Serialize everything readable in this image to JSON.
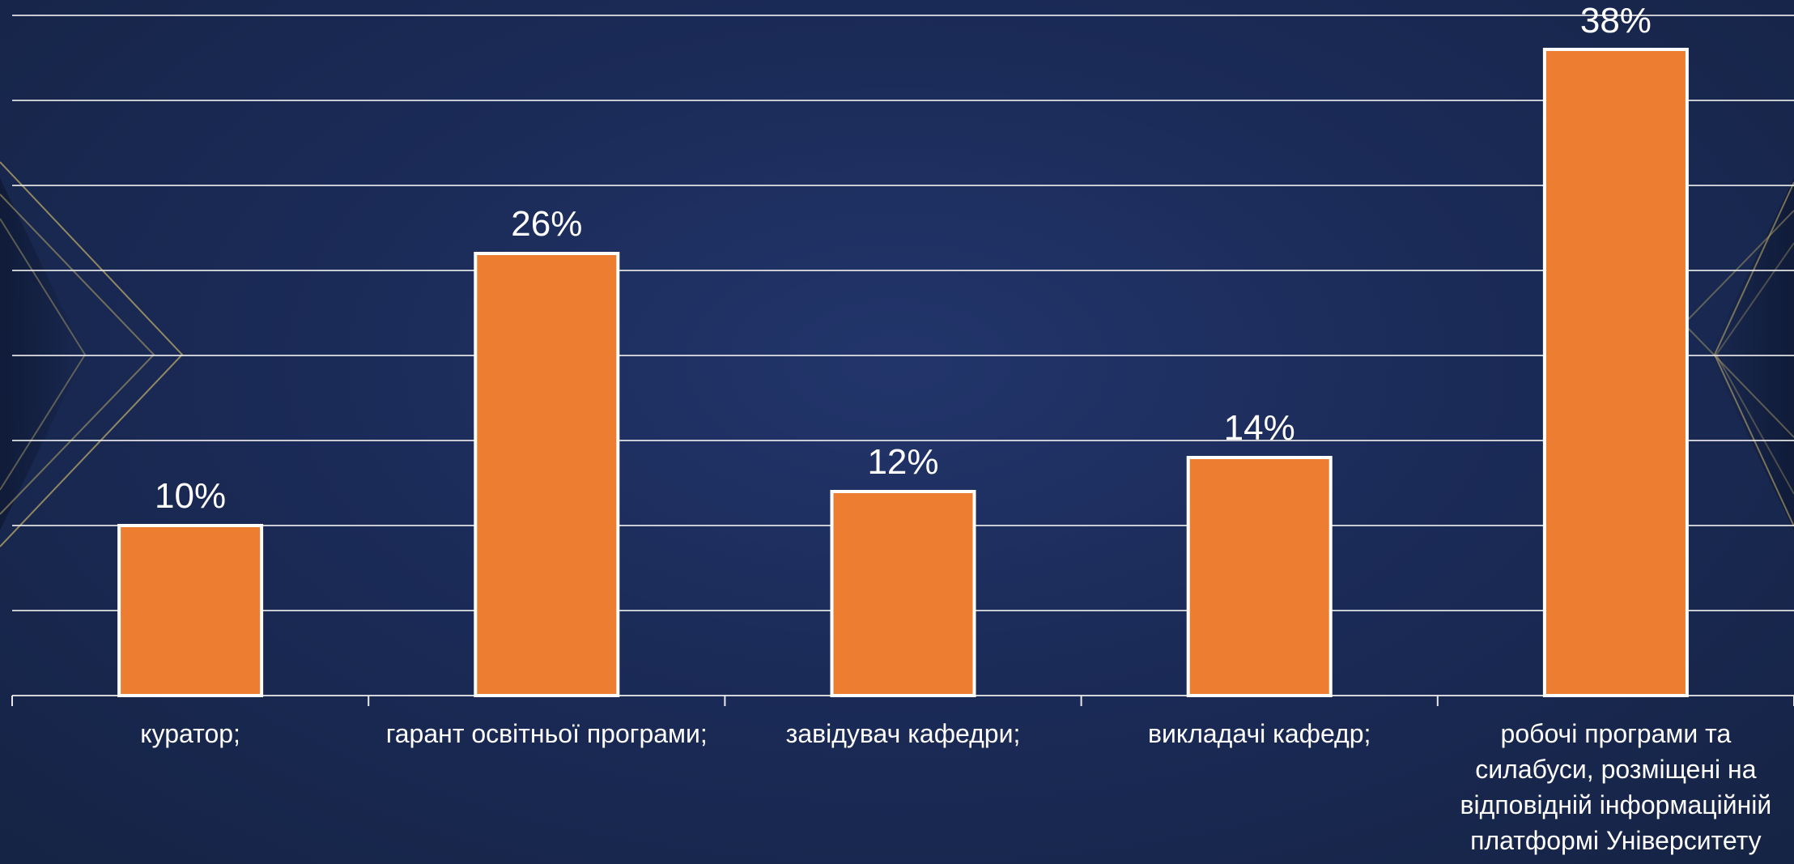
{
  "colors": {
    "bar": "#ED7D31",
    "bar_stroke": "#FFFFFF",
    "grid": "#E8E8E8",
    "text": "#FFFFFF",
    "background": "#1B2B58",
    "decor": "#B9A86A"
  },
  "chart_data": {
    "type": "bar",
    "categories": [
      "куратор;",
      "гарант освітньої програми;",
      "завідувач кафедри;",
      "викладачі кафедр;",
      "робочі програми та силабуси, розміщені на відповідній інформаційній платформі Університету"
    ],
    "values": [
      10,
      26,
      12,
      14,
      38
    ],
    "data_labels": [
      "10%",
      "26%",
      "12%",
      "14%",
      "38%"
    ],
    "title": "",
    "xlabel": "",
    "ylabel": "",
    "ylim": [
      0,
      40
    ],
    "grid": true,
    "legend": "none"
  }
}
